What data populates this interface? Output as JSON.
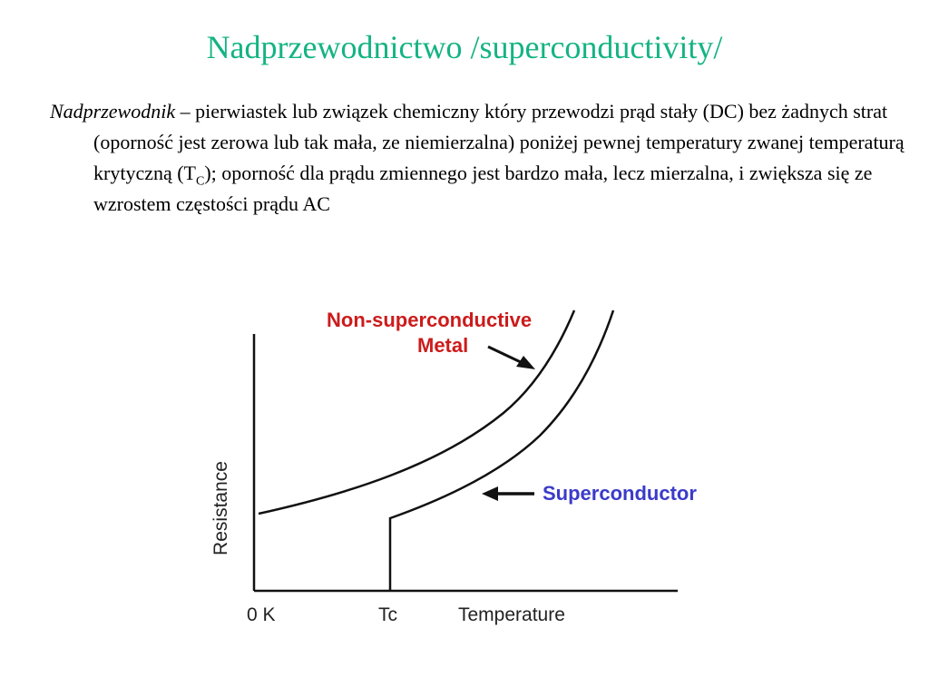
{
  "slide": {
    "title": "Nadprzewodnictwo /superconductivity/",
    "definition": {
      "term": "Nadprzewodnik",
      "body_before_sub": " – pierwiastek lub związek chemiczny który przewodzi prąd stały (DC) bez żadnych strat (oporność jest zerowa lub tak mała, ze niemierzalna) poniżej pewnej temperatury zwanej temperaturą krytyczną (T",
      "subscript": "C",
      "body_after_sub": "); oporność dla prądu zmiennego jest bardzo mała, lecz mierzalna, i zwiększa się ze wzrostem częstości prądu AC"
    }
  },
  "diagram": {
    "label_metal_line1": "Non-superconductive",
    "label_metal_line2": "Metal",
    "label_superconductor": "Superconductor",
    "y_axis_label": "Resistance",
    "x_axis_label": "Temperature",
    "x_origin_label": "0 K",
    "x_tc_label": "Tc",
    "colors": {
      "metal_label": "#cc1b1b",
      "superconductor_label": "#3b3bc9",
      "curves": "#111111",
      "title": "#14b383"
    }
  }
}
